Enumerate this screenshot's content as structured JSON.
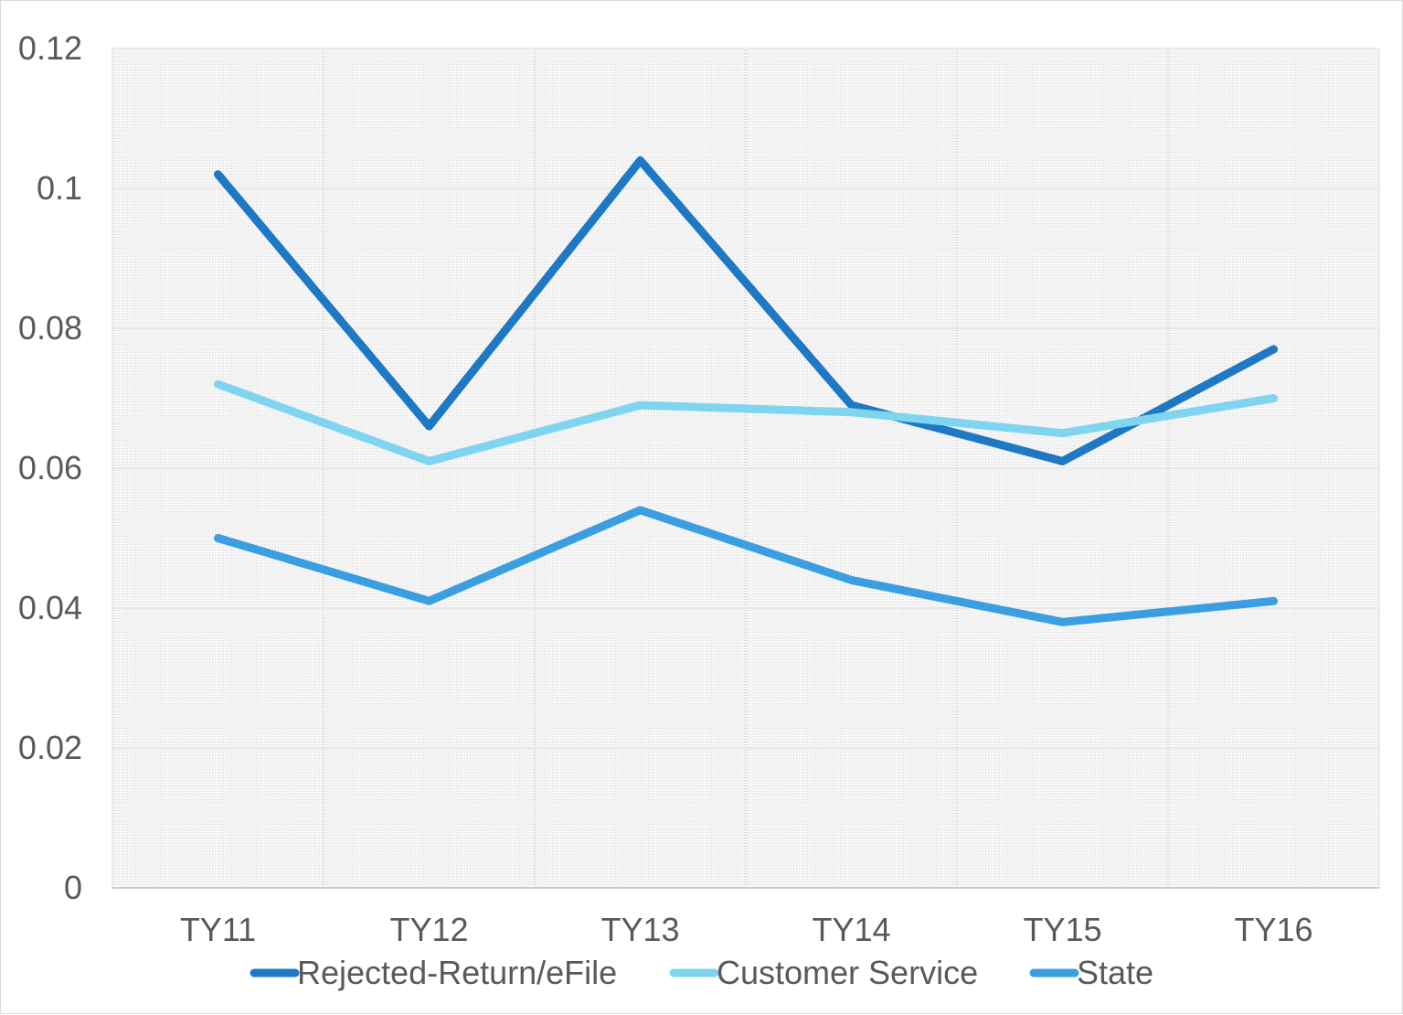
{
  "chart_data": {
    "type": "line",
    "title": "",
    "xlabel": "",
    "ylabel": "",
    "categories": [
      "TY11",
      "TY12",
      "TY13",
      "TY14",
      "TY15",
      "TY16"
    ],
    "ylim": [
      0,
      0.12
    ],
    "yticks": [
      "0",
      "0.02",
      "0.04",
      "0.06",
      "0.08",
      "0.1",
      "0.12"
    ],
    "grid": true,
    "legend_position": "bottom",
    "series": [
      {
        "name": "Rejected-Return/eFile",
        "color": "#1f78c4",
        "values": [
          0.102,
          0.066,
          0.104,
          0.069,
          0.061,
          0.077
        ]
      },
      {
        "name": "Customer Service",
        "color": "#7fd5f0",
        "values": [
          0.072,
          0.061,
          0.069,
          0.068,
          0.065,
          0.07
        ]
      },
      {
        "name": "State",
        "color": "#3a9ee0",
        "values": [
          0.05,
          0.041,
          0.054,
          0.044,
          0.038,
          0.041
        ]
      }
    ]
  }
}
